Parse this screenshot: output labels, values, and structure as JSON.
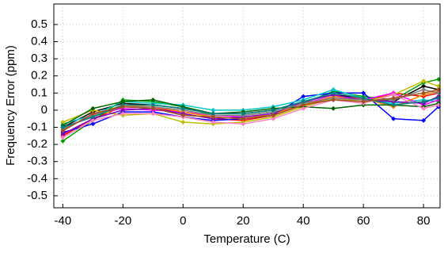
{
  "chart_data": {
    "type": "line",
    "x_label": "Temperature (C)",
    "y_label": "Frequency Error (ppm)",
    "x": [
      -40,
      -30,
      -20,
      -10,
      0,
      10,
      20,
      30,
      40,
      50,
      60,
      70,
      80,
      85
    ],
    "series": [
      {
        "color": "#000000",
        "values": [
          -0.1,
          -0.01,
          0.04,
          0.03,
          0.01,
          -0.02,
          -0.02,
          0.0,
          0.05,
          0.09,
          0.07,
          0.05,
          0.14,
          0.12
        ]
      },
      {
        "color": "#ff0000",
        "values": [
          -0.15,
          -0.05,
          0.02,
          0.02,
          -0.02,
          -0.05,
          -0.06,
          -0.03,
          0.03,
          0.07,
          0.05,
          0.1,
          0.08,
          0.1
        ]
      },
      {
        "color": "#00a000",
        "values": [
          -0.18,
          -0.06,
          0.06,
          0.05,
          0.02,
          -0.03,
          -0.03,
          -0.01,
          0.04,
          0.11,
          0.08,
          0.06,
          0.16,
          0.18
        ]
      },
      {
        "color": "#0000ff",
        "values": [
          -0.13,
          -0.08,
          -0.01,
          -0.01,
          -0.04,
          -0.06,
          -0.05,
          -0.03,
          0.08,
          0.1,
          0.1,
          -0.05,
          -0.06,
          0.02
        ]
      },
      {
        "color": "#00c8c8",
        "values": [
          -0.08,
          -0.03,
          0.05,
          0.04,
          0.03,
          0.0,
          0.0,
          0.02,
          0.06,
          0.12,
          0.07,
          0.04,
          0.06,
          0.05
        ]
      },
      {
        "color": "#ff00ff",
        "values": [
          -0.12,
          -0.02,
          0.01,
          0.0,
          -0.01,
          -0.03,
          -0.04,
          -0.02,
          0.04,
          0.08,
          0.06,
          0.1,
          0.03,
          0.06
        ]
      },
      {
        "color": "#c0c000",
        "values": [
          -0.07,
          0.0,
          -0.03,
          -0.02,
          -0.07,
          -0.08,
          -0.07,
          -0.04,
          0.02,
          0.07,
          0.05,
          0.09,
          0.17,
          0.14
        ]
      },
      {
        "color": "#ff8000",
        "values": [
          -0.11,
          -0.03,
          0.03,
          0.02,
          -0.01,
          -0.04,
          -0.05,
          -0.02,
          0.03,
          0.08,
          0.07,
          0.02,
          0.09,
          0.11
        ]
      },
      {
        "color": "#8000c0",
        "values": [
          -0.14,
          -0.05,
          0.0,
          0.01,
          -0.02,
          -0.05,
          -0.04,
          -0.02,
          0.05,
          0.09,
          0.06,
          0.05,
          0.04,
          0.08
        ]
      },
      {
        "color": "#006400",
        "values": [
          -0.09,
          0.01,
          0.05,
          0.06,
          0.02,
          -0.02,
          -0.01,
          0.01,
          0.02,
          0.01,
          0.03,
          0.03,
          0.02,
          0.04
        ]
      },
      {
        "color": "#808080",
        "values": [
          -0.11,
          -0.03,
          0.02,
          0.02,
          0.0,
          -0.03,
          -0.03,
          -0.01,
          0.04,
          0.07,
          0.06,
          0.06,
          0.12,
          0.1
        ]
      },
      {
        "color": "#ff80c0",
        "values": [
          -0.16,
          -0.06,
          -0.02,
          -0.02,
          -0.04,
          -0.07,
          -0.08,
          -0.05,
          0.01,
          0.06,
          0.04,
          0.09,
          0.01,
          0.03
        ]
      },
      {
        "color": "#008080",
        "values": [
          -0.1,
          -0.04,
          0.03,
          0.03,
          0.01,
          -0.02,
          -0.02,
          0.0,
          0.05,
          0.1,
          0.07,
          0.03,
          0.05,
          0.07
        ]
      },
      {
        "color": "#a05020",
        "values": [
          -0.12,
          -0.02,
          0.02,
          0.01,
          -0.03,
          -0.04,
          -0.05,
          -0.03,
          0.03,
          0.06,
          0.05,
          0.07,
          0.1,
          0.12
        ]
      }
    ],
    "xlim": [
      -43,
      85.5
    ],
    "ylim": [
      -0.57,
      0.62
    ],
    "xticks": [
      -40,
      -20,
      0,
      20,
      40,
      60,
      80
    ],
    "yticks": [
      -0.5,
      -0.4,
      -0.3,
      -0.2,
      -0.1,
      0,
      0.1,
      0.2,
      0.3,
      0.4,
      0.5
    ],
    "grid": true
  }
}
